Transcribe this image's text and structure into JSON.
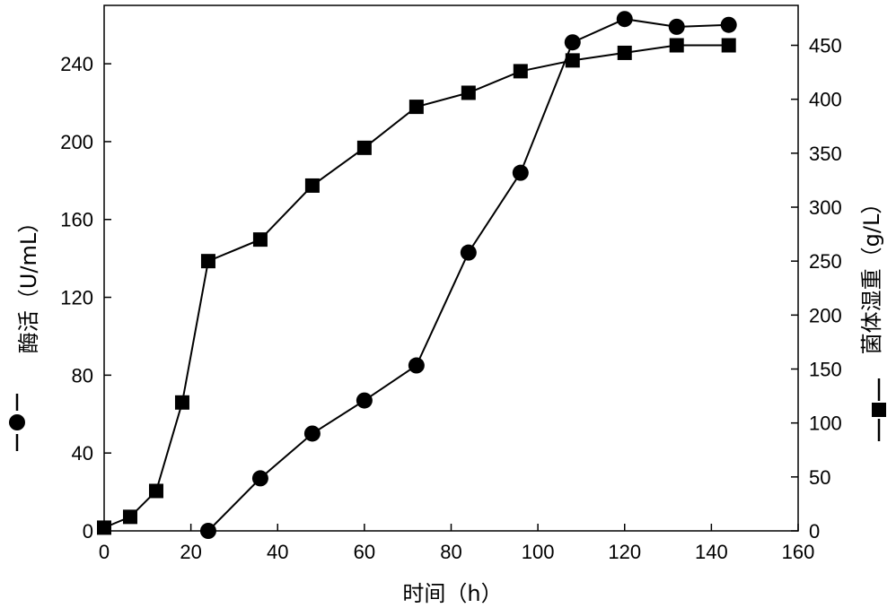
{
  "chart_data": {
    "type": "line",
    "xlabel": "时间（h）",
    "ylabel_left": "酶活（U/mL）",
    "ylabel_right": "菌体湿重（g/L）",
    "xlim": [
      0,
      160
    ],
    "ylim_left": [
      0,
      270
    ],
    "ylim_right": [
      0,
      487
    ],
    "x_ticks": [
      0,
      20,
      40,
      60,
      80,
      100,
      120,
      140,
      160
    ],
    "y_ticks_left": [
      0,
      40,
      80,
      120,
      160,
      200,
      240
    ],
    "y_ticks_right": [
      0,
      50,
      100,
      150,
      200,
      250,
      300,
      350,
      400,
      450
    ],
    "grid": false,
    "series": [
      {
        "axis": "left",
        "marker": "circle",
        "color": "#000000",
        "x": [
          24,
          36,
          48,
          60,
          72,
          84,
          96,
          108,
          120,
          132,
          144
        ],
        "y": [
          0,
          27,
          50,
          67,
          85,
          143,
          184,
          251,
          263,
          259,
          260
        ]
      },
      {
        "axis": "right",
        "marker": "square",
        "color": "#000000",
        "x": [
          0,
          6,
          12,
          18,
          24,
          36,
          48,
          60,
          72,
          84,
          96,
          108,
          120,
          132,
          144
        ],
        "y": [
          3,
          13,
          37,
          119,
          250,
          270,
          320,
          355,
          393,
          406,
          426,
          436,
          443,
          450,
          450
        ]
      }
    ]
  }
}
